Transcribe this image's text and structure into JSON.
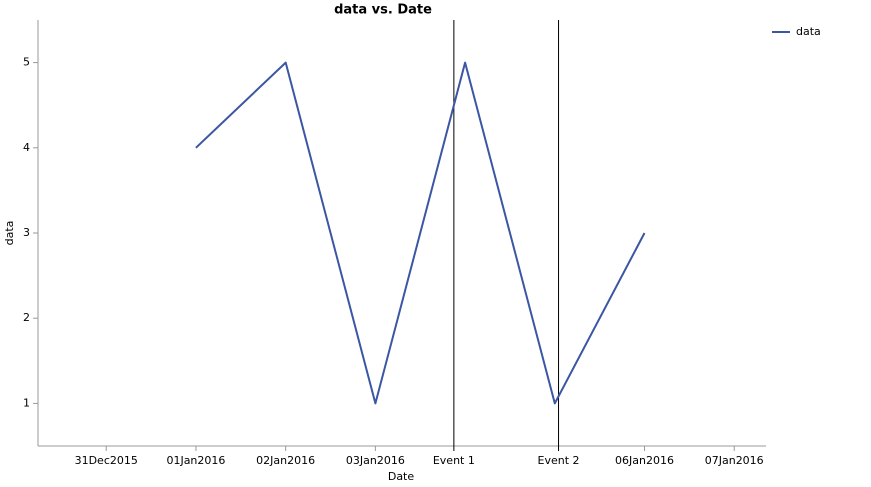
{
  "chart_data": {
    "type": "line",
    "title": "data vs. Date",
    "x_label": "Date",
    "y_label": "data",
    "x": [
      "2016-01-01",
      "2016-01-02",
      "2016-01-03",
      "2016-01-04",
      "2016-01-05",
      "2016-01-06"
    ],
    "series": [
      {
        "name": "data",
        "color": "#3b56a3",
        "values": [
          4,
          5,
          1,
          5,
          1,
          3
        ]
      }
    ],
    "xlim": [
      "2015-12-30T05:45",
      "2016-01-07T08:30"
    ],
    "xticks": [
      {
        "value": "2015-12-31",
        "label": "31Dec2015"
      },
      {
        "value": "2016-01-01",
        "label": "01Jan2016"
      },
      {
        "value": "2016-01-02",
        "label": "02Jan2016"
      },
      {
        "value": "2016-01-03",
        "label": "03Jan2016"
      },
      {
        "value": "2016-01-06",
        "label": "06Jan2016"
      },
      {
        "value": "2016-01-07",
        "label": "07Jan2016"
      }
    ],
    "events": [
      {
        "x": "2016-01-03T21:00",
        "label": "Event 1"
      },
      {
        "x": "2016-01-05T01:00",
        "label": "Event 2"
      }
    ],
    "ylim": [
      0.5,
      5.5
    ],
    "yticks": [
      1,
      2,
      3,
      4,
      5
    ],
    "grid": false,
    "legend": "outside-top-right"
  }
}
